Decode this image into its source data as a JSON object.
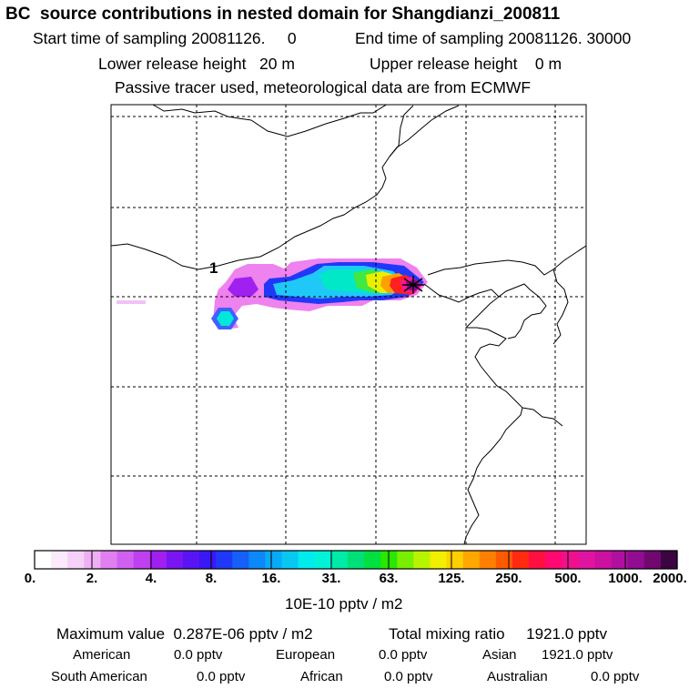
{
  "header": {
    "title": "BC  source contributions in nested domain for Shangdianzi_200811",
    "start_time": "Start time of sampling 20081126.     0",
    "end_time": "End time of sampling 20081126. 30000",
    "lower_release": "Lower release height   20 m",
    "upper_release": "Upper release height    0 m",
    "tracer_info": "Passive tracer used, meteorological data are from ECMWF"
  },
  "map": {
    "receptor_label": "1",
    "colors": {
      "frame": "#000000",
      "coast": "#000000",
      "grid": "#000000",
      "plume_outer": "#ee82ee",
      "plume_core": "#ff1493"
    }
  },
  "colorbar": {
    "ticks": [
      "0.",
      "2.",
      "4.",
      "8.",
      "16.",
      "31.",
      "63.",
      "125.",
      "250.",
      "500.",
      "1000.",
      "2000."
    ],
    "unit": "10E-10 pptv / m2",
    "colors": [
      "#ffffff",
      "#fbeafc",
      "#f5d0f8",
      "#eeb0f3",
      "#e07ff0",
      "#d060f0",
      "#c040f0",
      "#a020f0",
      "#7a16f2",
      "#5a14f4",
      "#3a18f6",
      "#2038f8",
      "#1460f8",
      "#0c88f8",
      "#08aaf6",
      "#08c8f2",
      "#00ecec",
      "#00f2d8",
      "#00eaa8",
      "#00e078",
      "#00e040",
      "#28e800",
      "#78ee00",
      "#b8f400",
      "#f0f000",
      "#ffd000",
      "#ffa800",
      "#ff8000",
      "#ff5a00",
      "#ff2a10",
      "#ff1040",
      "#ff0870",
      "#f0108e",
      "#e014a0",
      "#cc10a0",
      "#b010a0",
      "#900c90",
      "#700870",
      "#3c0440"
    ]
  },
  "summary": {
    "max_value": "Maximum value  0.287E-06 pptv / m2",
    "total_mixing": "Total mixing ratio     1921.0 pptv",
    "regions": [
      {
        "name": "American",
        "value": "0.0 pptv"
      },
      {
        "name": "European",
        "value": "0.0 pptv"
      },
      {
        "name": "Asian",
        "value": "1921.0 pptv"
      },
      {
        "name": "South American",
        "value": "0.0 pptv"
      },
      {
        "name": "African",
        "value": "0.0 pptv"
      },
      {
        "name": "Australian",
        "value": "0.0 pptv"
      }
    ]
  }
}
